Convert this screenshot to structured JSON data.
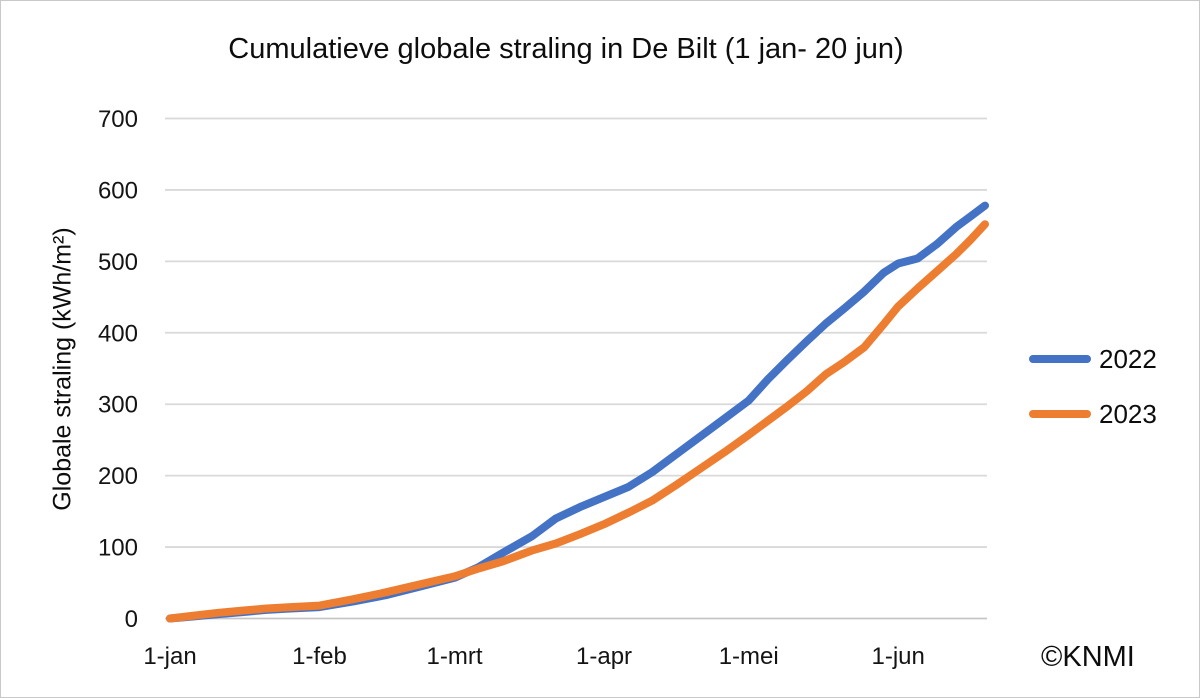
{
  "window": {
    "background": "#ffffff",
    "border_color": "#c9c9c9"
  },
  "colors": {
    "gridline": "#d9d9d9",
    "axis_line": "#c6c6c6",
    "tick_text": "#141414",
    "series_2022": "#4472C4",
    "series_2023": "#ED7D31"
  },
  "chart_data": {
    "type": "line",
    "title": "Cumulatieve globale straling in De Bilt (1 jan- 20 jun)",
    "xlabel": "",
    "ylabel": "Globale straling (kWh/m²)",
    "ylim": [
      0,
      700
    ],
    "yticks": [
      0,
      100,
      200,
      300,
      400,
      500,
      600,
      700
    ],
    "grid": "horizontal",
    "legend_position": "right",
    "x_unit": "days since 1 jan",
    "x_range_days": [
      0,
      169
    ],
    "xticks": [
      {
        "label": "1-jan",
        "day": 0
      },
      {
        "label": "1-feb",
        "day": 31
      },
      {
        "label": "1-mrt",
        "day": 59
      },
      {
        "label": "1-apr",
        "day": 90
      },
      {
        "label": "1-mei",
        "day": 120
      },
      {
        "label": "1-jun",
        "day": 151
      }
    ],
    "x_days": [
      0,
      5,
      10,
      15,
      20,
      25,
      31,
      38,
      45,
      52,
      59,
      64,
      69,
      75,
      80,
      85,
      90,
      95,
      100,
      105,
      110,
      115,
      120,
      124,
      128,
      132,
      136,
      140,
      144,
      148,
      151,
      155,
      159,
      163,
      166,
      169
    ],
    "series": [
      {
        "name": "2022",
        "color": "#4472C4",
        "values": [
          0,
          3,
          6,
          9,
          12,
          14,
          16,
          24,
          33,
          45,
          57,
          72,
          92,
          115,
          140,
          156,
          170,
          184,
          205,
          230,
          255,
          280,
          305,
          335,
          362,
          388,
          413,
          435,
          458,
          484,
          497,
          504,
          524,
          548,
          563,
          578
        ]
      },
      {
        "name": "2023",
        "color": "#ED7D31",
        "values": [
          0,
          4,
          8,
          11,
          14,
          16,
          18,
          27,
          37,
          48,
          59,
          70,
          80,
          95,
          105,
          118,
          132,
          148,
          165,
          187,
          210,
          233,
          257,
          277,
          297,
          318,
          342,
          360,
          380,
          412,
          437,
          462,
          486,
          510,
          530,
          552
        ]
      }
    ]
  },
  "footer": {
    "copyright": "©KNMI"
  }
}
